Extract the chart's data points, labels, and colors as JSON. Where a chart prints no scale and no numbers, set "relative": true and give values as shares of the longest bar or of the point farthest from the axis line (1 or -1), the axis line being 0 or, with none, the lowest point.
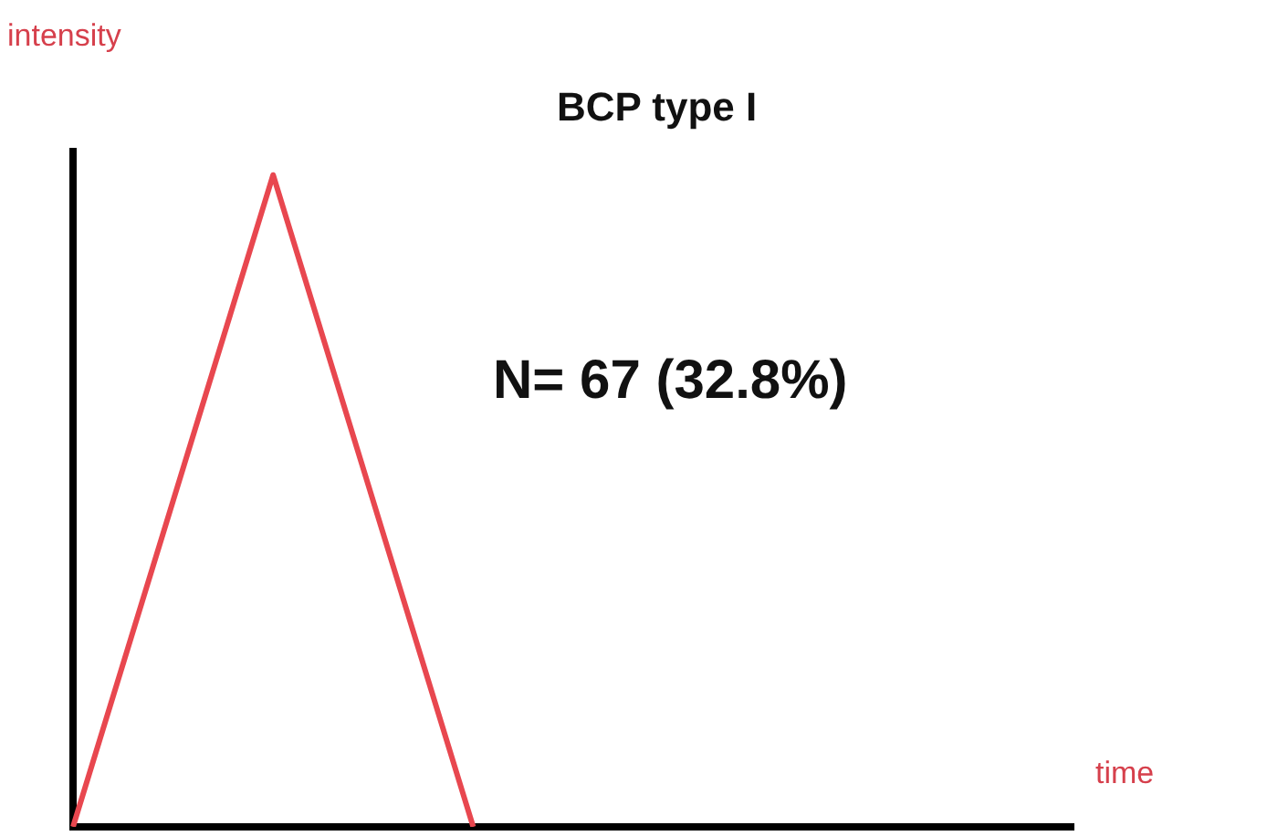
{
  "chart_data": {
    "type": "line",
    "title": "BCP type I",
    "xlabel": "time",
    "ylabel": "intensity",
    "annotations": [
      "N= 67 (32.8%)"
    ],
    "categories": [
      null,
      null,
      null,
      null,
      null,
      null
    ],
    "series": [
      {
        "color": "#e8474f",
        "values": [
          0,
          1,
          0,
          null,
          null,
          null
        ]
      }
    ],
    "relative": true,
    "grid": false,
    "legend": false,
    "marker": "none",
    "line_style": "solid",
    "tick_labels": false
  }
}
